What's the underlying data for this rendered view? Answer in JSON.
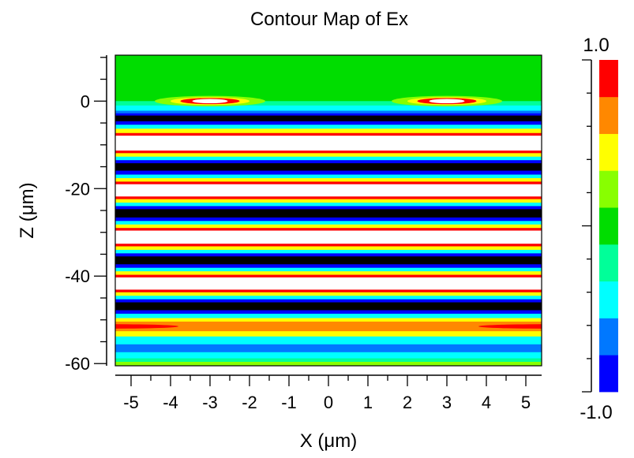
{
  "chart_data": {
    "type": "heatmap",
    "title": "Contour Map of Ex",
    "xlabel": "X (μm)",
    "ylabel": "Z (μm)",
    "xlim": [
      -5.4,
      5.4
    ],
    "ylim": [
      -60.5,
      10.5
    ],
    "x_ticks": [
      -5,
      -4,
      -3,
      -2,
      -1,
      0,
      1,
      2,
      3,
      4,
      5
    ],
    "x_tick_labels": [
      "-5",
      "-4",
      "-3",
      "-2",
      "-1",
      "0",
      "1",
      "2",
      "3",
      "4",
      "5"
    ],
    "y_ticks": [
      0,
      -20,
      -40,
      -60
    ],
    "y_tick_labels": [
      "0",
      "-20",
      "-40",
      "-60"
    ],
    "grid": false,
    "colorbar": {
      "min": -1.0,
      "max": 1.0,
      "min_label": "-1.0",
      "max_label": "1.0",
      "levels": [
        "#0000ff",
        "#0078ff",
        "#00ffff",
        "#00ff99",
        "#00dd00",
        "#88ff00",
        "#ffff00",
        "#ff8800",
        "#ff0000"
      ]
    },
    "level_colors": {
      "-1": "#000000",
      "-0.8": "#0000ff",
      "-0.6": "#0078ff",
      "-0.4": "#00ffff",
      "-0.2": "#00ff99",
      "0": "#00dd00",
      "0.2": "#88ff00",
      "0.4": "#ffff00",
      "0.6": "#ff8800",
      "0.8": "#ff0000",
      "1": "#ffffff"
    },
    "bands": [
      {
        "z_top": 10.5,
        "z_bottom": 0.0,
        "value": 0.0
      },
      {
        "z_top": 0.0,
        "z_bottom": -1.0,
        "value": -0.2
      },
      {
        "z_top": -1.0,
        "z_bottom": -2.2,
        "value": -0.4
      },
      {
        "z_top": -2.2,
        "z_bottom": -2.8,
        "value": -0.6
      },
      {
        "z_top": -2.8,
        "z_bottom": -3.3,
        "value": -0.8
      },
      {
        "z_top": -3.3,
        "z_bottom": -4.6,
        "value": -1.0
      },
      {
        "z_top": -4.6,
        "z_bottom": -5.4,
        "value": -0.8
      },
      {
        "z_top": -5.4,
        "z_bottom": -6.3,
        "value": -0.4
      },
      {
        "z_top": -6.3,
        "z_bottom": -7.3,
        "value": 0.4
      },
      {
        "z_top": -7.3,
        "z_bottom": -7.9,
        "value": 0.8
      },
      {
        "z_top": -7.9,
        "z_bottom": -11.3,
        "value": 1.0
      },
      {
        "z_top": -11.3,
        "z_bottom": -11.9,
        "value": 0.8
      },
      {
        "z_top": -11.9,
        "z_bottom": -12.7,
        "value": 0.4
      },
      {
        "z_top": -12.7,
        "z_bottom": -13.5,
        "value": -0.4
      },
      {
        "z_top": -13.5,
        "z_bottom": -14.2,
        "value": -0.8
      },
      {
        "z_top": -14.2,
        "z_bottom": -15.9,
        "value": -1.0
      },
      {
        "z_top": -15.9,
        "z_bottom": -16.8,
        "value": -0.8
      },
      {
        "z_top": -16.8,
        "z_bottom": -17.6,
        "value": -0.4
      },
      {
        "z_top": -17.6,
        "z_bottom": -18.4,
        "value": 0.4
      },
      {
        "z_top": -18.4,
        "z_bottom": -19.0,
        "value": 0.8
      },
      {
        "z_top": -19.0,
        "z_bottom": -21.8,
        "value": 1.0
      },
      {
        "z_top": -21.8,
        "z_bottom": -22.4,
        "value": 0.8
      },
      {
        "z_top": -22.4,
        "z_bottom": -23.2,
        "value": 0.4
      },
      {
        "z_top": -23.2,
        "z_bottom": -24.0,
        "value": -0.4
      },
      {
        "z_top": -24.0,
        "z_bottom": -24.7,
        "value": -0.8
      },
      {
        "z_top": -24.7,
        "z_bottom": -26.6,
        "value": -1.0
      },
      {
        "z_top": -26.6,
        "z_bottom": -27.4,
        "value": -0.8
      },
      {
        "z_top": -27.4,
        "z_bottom": -28.2,
        "value": -0.4
      },
      {
        "z_top": -28.2,
        "z_bottom": -29.0,
        "value": 0.4
      },
      {
        "z_top": -29.0,
        "z_bottom": -29.6,
        "value": 0.8
      },
      {
        "z_top": -29.6,
        "z_bottom": -32.6,
        "value": 1.0
      },
      {
        "z_top": -32.6,
        "z_bottom": -33.2,
        "value": 0.8
      },
      {
        "z_top": -33.2,
        "z_bottom": -34.0,
        "value": 0.4
      },
      {
        "z_top": -34.0,
        "z_bottom": -34.8,
        "value": -0.4
      },
      {
        "z_top": -34.8,
        "z_bottom": -35.5,
        "value": -0.8
      },
      {
        "z_top": -35.5,
        "z_bottom": -37.3,
        "value": -1.0
      },
      {
        "z_top": -37.3,
        "z_bottom": -38.1,
        "value": -0.8
      },
      {
        "z_top": -38.1,
        "z_bottom": -38.9,
        "value": -0.4
      },
      {
        "z_top": -38.9,
        "z_bottom": -39.7,
        "value": 0.4
      },
      {
        "z_top": -39.7,
        "z_bottom": -40.3,
        "value": 0.8
      },
      {
        "z_top": -40.3,
        "z_bottom": -43.1,
        "value": 1.0
      },
      {
        "z_top": -43.1,
        "z_bottom": -43.7,
        "value": 0.8
      },
      {
        "z_top": -43.7,
        "z_bottom": -44.5,
        "value": 0.4
      },
      {
        "z_top": -44.5,
        "z_bottom": -45.3,
        "value": -0.4
      },
      {
        "z_top": -45.3,
        "z_bottom": -46.0,
        "value": -0.8
      },
      {
        "z_top": -46.0,
        "z_bottom": -47.8,
        "value": -1.0
      },
      {
        "z_top": -47.8,
        "z_bottom": -48.6,
        "value": -0.8
      },
      {
        "z_top": -48.6,
        "z_bottom": -49.6,
        "value": -0.4
      },
      {
        "z_top": -49.6,
        "z_bottom": -50.4,
        "value": 0.4
      },
      {
        "z_top": -50.4,
        "z_bottom": -52.6,
        "value": 0.6
      },
      {
        "z_top": -52.6,
        "z_bottom": -53.8,
        "value": 0.4
      },
      {
        "z_top": -53.8,
        "z_bottom": -55.6,
        "value": -0.4
      },
      {
        "z_top": -55.6,
        "z_bottom": -57.4,
        "value": -0.6
      },
      {
        "z_top": -57.4,
        "z_bottom": -58.8,
        "value": -0.4
      },
      {
        "z_top": -58.8,
        "z_bottom": -59.6,
        "value": -0.2
      },
      {
        "z_top": -59.6,
        "z_bottom": -60.5,
        "value": 0.2
      }
    ],
    "features": [
      {
        "kind": "ellipse",
        "x": -3.0,
        "z": 0.0,
        "rx": 1.4,
        "rz": 1.2,
        "value": 0.2
      },
      {
        "kind": "ellipse",
        "x": -3.0,
        "z": 0.0,
        "rx": 1.0,
        "rz": 0.9,
        "value": 0.4
      },
      {
        "kind": "ellipse",
        "x": -3.0,
        "z": 0.0,
        "rx": 0.75,
        "rz": 0.7,
        "value": 0.8
      },
      {
        "kind": "ellipse",
        "x": -3.0,
        "z": 0.0,
        "rx": 0.45,
        "rz": 0.5,
        "value": 1.0
      },
      {
        "kind": "ellipse",
        "x": 3.0,
        "z": 0.0,
        "rx": 1.4,
        "rz": 1.2,
        "value": 0.2
      },
      {
        "kind": "ellipse",
        "x": 3.0,
        "z": 0.0,
        "rx": 1.0,
        "rz": 0.9,
        "value": 0.4
      },
      {
        "kind": "ellipse",
        "x": 3.0,
        "z": 0.0,
        "rx": 0.75,
        "rz": 0.7,
        "value": 0.8
      },
      {
        "kind": "ellipse",
        "x": 3.0,
        "z": 0.0,
        "rx": 0.45,
        "rz": 0.5,
        "value": 1.0
      },
      {
        "kind": "ellipse",
        "x": -5.4,
        "z": -51.5,
        "rx": 1.6,
        "rz": 0.5,
        "value": 0.8
      },
      {
        "kind": "ellipse",
        "x": 5.4,
        "z": -51.5,
        "rx": 1.6,
        "rz": 0.5,
        "value": 0.8
      }
    ]
  }
}
